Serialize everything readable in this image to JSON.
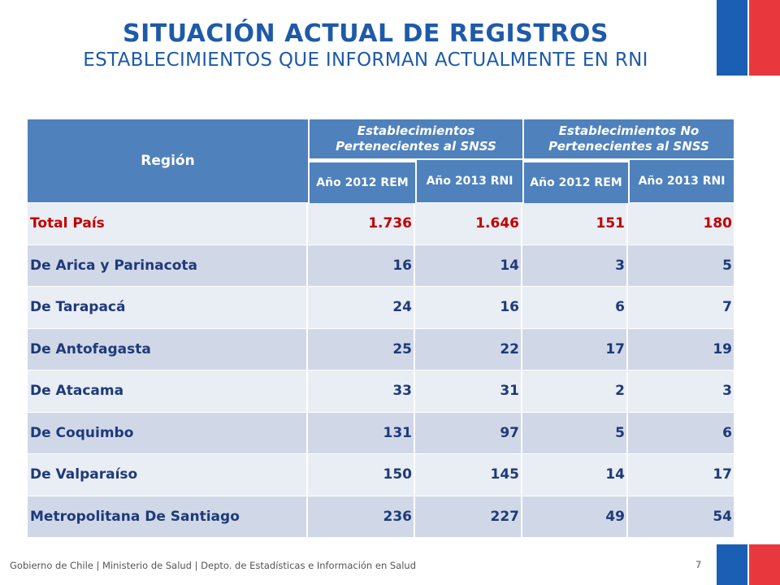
{
  "title": "SITUACIÓN ACTUAL DE REGISTROS",
  "subtitle": "ESTABLECIMIENTOS QUE INFORMAN ACTUALMENTE EN RNI",
  "table": {
    "header": {
      "region": "Región",
      "group1": "Establecimientos Pertenecientes al SNSS",
      "group2": "Establecimientos No Pertenecientes al SNSS",
      "sub1": "Año 2012 REM",
      "sub2": "Año 2013 RNI",
      "sub3": "Año 2012 REM",
      "sub4": "Año 2013 RNI"
    },
    "rows": [
      {
        "region": "Total País",
        "v1": "1.736",
        "v2": "1.646",
        "v3": "151",
        "v4": "180"
      },
      {
        "region": "De Arica y Parinacota",
        "v1": "16",
        "v2": "14",
        "v3": "3",
        "v4": "5"
      },
      {
        "region": "De Tarapacá",
        "v1": "24",
        "v2": "16",
        "v3": "6",
        "v4": "7"
      },
      {
        "region": "De Antofagasta",
        "v1": "25",
        "v2": "22",
        "v3": "17",
        "v4": "19"
      },
      {
        "region": "De Atacama",
        "v1": "33",
        "v2": "31",
        "v3": "2",
        "v4": "3"
      },
      {
        "region": "De Coquimbo",
        "v1": "131",
        "v2": "97",
        "v3": "5",
        "v4": "6"
      },
      {
        "region": "De Valparaíso",
        "v1": "150",
        "v2": "145",
        "v3": "14",
        "v4": "17"
      },
      {
        "region": "Metropolitana De Santiago",
        "v1": "236",
        "v2": "227",
        "v3": "49",
        "v4": "54"
      }
    ]
  },
  "footer": {
    "text": "Gobierno de Chile | Ministerio de Salud | Depto. de Estadísticas e Información en Salud",
    "page": "7"
  },
  "colors": {
    "title": "#1e5aa8",
    "header_bg": "#4f81bd",
    "row_light": "#e9edf4",
    "row_dark": "#d0d8e8",
    "total_text": "#c00000",
    "body_text": "#1e3a78",
    "flag_blue": "#1a5fb4",
    "flag_red": "#e8383d"
  }
}
